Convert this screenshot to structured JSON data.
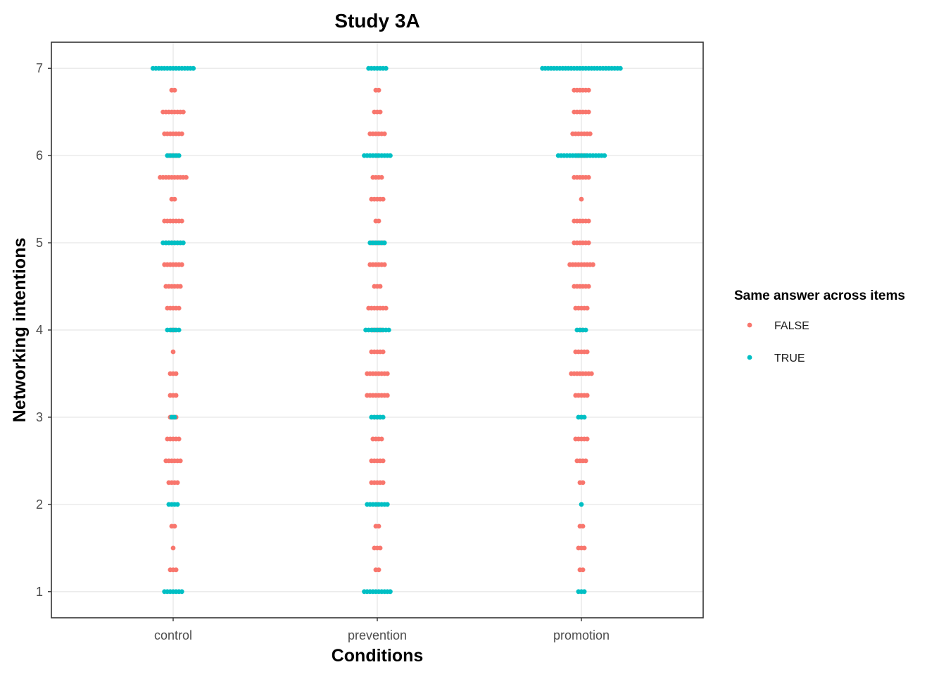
{
  "chart_data": {
    "type": "scatter",
    "title": "Study 3A",
    "xlabel": "Conditions",
    "ylabel": "Networking intentions",
    "categories": [
      "control",
      "prevention",
      "promotion"
    ],
    "yticks": [
      "1",
      "2",
      "3",
      "4",
      "5",
      "6",
      "7"
    ],
    "ylim": [
      0.7,
      7.3
    ],
    "grid": true,
    "legend": {
      "title": "Same answer across items",
      "position": "right",
      "entries": [
        "FALSE",
        "TRUE"
      ]
    },
    "colors": {
      "FALSE": "#F8766D",
      "TRUE": "#00BFC4"
    },
    "series": [
      {
        "name": "FALSE",
        "points": [
          {
            "x": "control",
            "y": 6.75,
            "n": 2
          },
          {
            "x": "control",
            "y": 6.5,
            "n": 8
          },
          {
            "x": "control",
            "y": 6.25,
            "n": 7
          },
          {
            "x": "control",
            "y": 6.0,
            "n": 4
          },
          {
            "x": "control",
            "y": 5.75,
            "n": 10
          },
          {
            "x": "control",
            "y": 5.5,
            "n": 2
          },
          {
            "x": "control",
            "y": 5.25,
            "n": 7
          },
          {
            "x": "control",
            "y": 5.0,
            "n": 6
          },
          {
            "x": "control",
            "y": 4.75,
            "n": 7
          },
          {
            "x": "control",
            "y": 4.5,
            "n": 6
          },
          {
            "x": "control",
            "y": 4.25,
            "n": 5
          },
          {
            "x": "control",
            "y": 4.0,
            "n": 2
          },
          {
            "x": "control",
            "y": 3.75,
            "n": 1
          },
          {
            "x": "control",
            "y": 3.5,
            "n": 3
          },
          {
            "x": "control",
            "y": 3.25,
            "n": 3
          },
          {
            "x": "control",
            "y": 3.0,
            "n": 3
          },
          {
            "x": "control",
            "y": 2.75,
            "n": 5
          },
          {
            "x": "control",
            "y": 2.5,
            "n": 6
          },
          {
            "x": "control",
            "y": 2.25,
            "n": 4
          },
          {
            "x": "control",
            "y": 1.75,
            "n": 2
          },
          {
            "x": "control",
            "y": 1.5,
            "n": 1
          },
          {
            "x": "control",
            "y": 1.25,
            "n": 3
          },
          {
            "x": "prevention",
            "y": 6.75,
            "n": 2
          },
          {
            "x": "prevention",
            "y": 6.5,
            "n": 3
          },
          {
            "x": "prevention",
            "y": 6.25,
            "n": 6
          },
          {
            "x": "prevention",
            "y": 6.0,
            "n": 1
          },
          {
            "x": "prevention",
            "y": 5.75,
            "n": 4
          },
          {
            "x": "prevention",
            "y": 5.5,
            "n": 5
          },
          {
            "x": "prevention",
            "y": 5.25,
            "n": 2
          },
          {
            "x": "prevention",
            "y": 5.0,
            "n": 5
          },
          {
            "x": "prevention",
            "y": 4.75,
            "n": 6
          },
          {
            "x": "prevention",
            "y": 4.5,
            "n": 3
          },
          {
            "x": "prevention",
            "y": 4.25,
            "n": 7
          },
          {
            "x": "prevention",
            "y": 4.0,
            "n": 4
          },
          {
            "x": "prevention",
            "y": 3.75,
            "n": 5
          },
          {
            "x": "prevention",
            "y": 3.5,
            "n": 8
          },
          {
            "x": "prevention",
            "y": 3.25,
            "n": 8
          },
          {
            "x": "prevention",
            "y": 3.0,
            "n": 3
          },
          {
            "x": "prevention",
            "y": 2.75,
            "n": 4
          },
          {
            "x": "prevention",
            "y": 2.5,
            "n": 5
          },
          {
            "x": "prevention",
            "y": 2.25,
            "n": 5
          },
          {
            "x": "prevention",
            "y": 2.0,
            "n": 1
          },
          {
            "x": "prevention",
            "y": 1.75,
            "n": 2
          },
          {
            "x": "prevention",
            "y": 1.5,
            "n": 3
          },
          {
            "x": "prevention",
            "y": 1.25,
            "n": 2
          },
          {
            "x": "promotion",
            "y": 6.75,
            "n": 6
          },
          {
            "x": "promotion",
            "y": 6.5,
            "n": 6
          },
          {
            "x": "promotion",
            "y": 6.25,
            "n": 7
          },
          {
            "x": "promotion",
            "y": 6.0,
            "n": 4
          },
          {
            "x": "promotion",
            "y": 5.75,
            "n": 6
          },
          {
            "x": "promotion",
            "y": 5.5,
            "n": 1
          },
          {
            "x": "promotion",
            "y": 5.25,
            "n": 6
          },
          {
            "x": "promotion",
            "y": 5.0,
            "n": 6
          },
          {
            "x": "promotion",
            "y": 4.75,
            "n": 9
          },
          {
            "x": "promotion",
            "y": 4.5,
            "n": 6
          },
          {
            "x": "promotion",
            "y": 4.25,
            "n": 5
          },
          {
            "x": "promotion",
            "y": 4.0,
            "n": 2
          },
          {
            "x": "promotion",
            "y": 3.75,
            "n": 5
          },
          {
            "x": "promotion",
            "y": 3.5,
            "n": 8
          },
          {
            "x": "promotion",
            "y": 3.25,
            "n": 5
          },
          {
            "x": "promotion",
            "y": 3.0,
            "n": 1
          },
          {
            "x": "promotion",
            "y": 2.75,
            "n": 5
          },
          {
            "x": "promotion",
            "y": 2.5,
            "n": 4
          },
          {
            "x": "promotion",
            "y": 2.25,
            "n": 2
          },
          {
            "x": "promotion",
            "y": 1.75,
            "n": 2
          },
          {
            "x": "promotion",
            "y": 1.5,
            "n": 3
          },
          {
            "x": "promotion",
            "y": 1.25,
            "n": 2
          }
        ]
      },
      {
        "name": "TRUE",
        "points": [
          {
            "x": "control",
            "y": 7.0,
            "n": 15
          },
          {
            "x": "control",
            "y": 6.0,
            "n": 5
          },
          {
            "x": "control",
            "y": 5.0,
            "n": 8
          },
          {
            "x": "control",
            "y": 4.0,
            "n": 5
          },
          {
            "x": "control",
            "y": 3.0,
            "n": 2
          },
          {
            "x": "control",
            "y": 2.0,
            "n": 4
          },
          {
            "x": "control",
            "y": 1.0,
            "n": 7
          },
          {
            "x": "prevention",
            "y": 7.0,
            "n": 7
          },
          {
            "x": "prevention",
            "y": 6.0,
            "n": 10
          },
          {
            "x": "prevention",
            "y": 5.0,
            "n": 6
          },
          {
            "x": "prevention",
            "y": 4.0,
            "n": 9
          },
          {
            "x": "prevention",
            "y": 3.0,
            "n": 5
          },
          {
            "x": "prevention",
            "y": 2.0,
            "n": 8
          },
          {
            "x": "prevention",
            "y": 1.0,
            "n": 10
          },
          {
            "x": "promotion",
            "y": 7.0,
            "n": 28
          },
          {
            "x": "promotion",
            "y": 6.0,
            "n": 17
          },
          {
            "x": "promotion",
            "y": 4.0,
            "n": 4
          },
          {
            "x": "promotion",
            "y": 3.0,
            "n": 3
          },
          {
            "x": "promotion",
            "y": 2.0,
            "n": 1
          },
          {
            "x": "promotion",
            "y": 1.0,
            "n": 3
          }
        ]
      }
    ]
  }
}
